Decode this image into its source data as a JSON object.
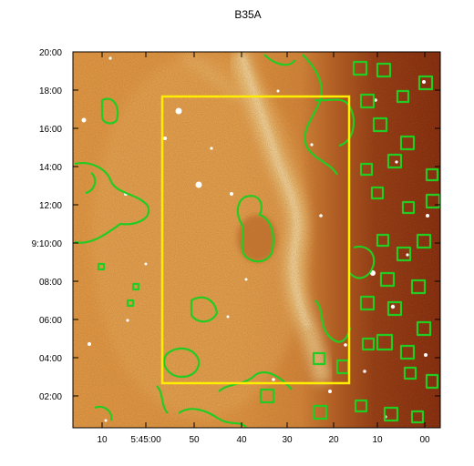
{
  "figure": {
    "title": "B35A",
    "y_ticks": [
      "20:00",
      "18:00",
      "16:00",
      "14:00",
      "12:00",
      "9:10:00",
      "08:00",
      "06:00",
      "04:00",
      "02:00"
    ],
    "x_ticks": [
      "10",
      "5:45:00",
      "50",
      "40",
      "30",
      "20",
      "10",
      "00"
    ],
    "colors": {
      "background_light": "#e8a04a",
      "background_dark": "#7a1e08",
      "filament": "#fbe6a6",
      "contours": "#22cc22",
      "rectangle": "#ffee00",
      "frame": "#000000"
    },
    "layers": [
      "optical-image",
      "bright-filament",
      "stars",
      "green-contours",
      "yellow-rectangle"
    ]
  }
}
